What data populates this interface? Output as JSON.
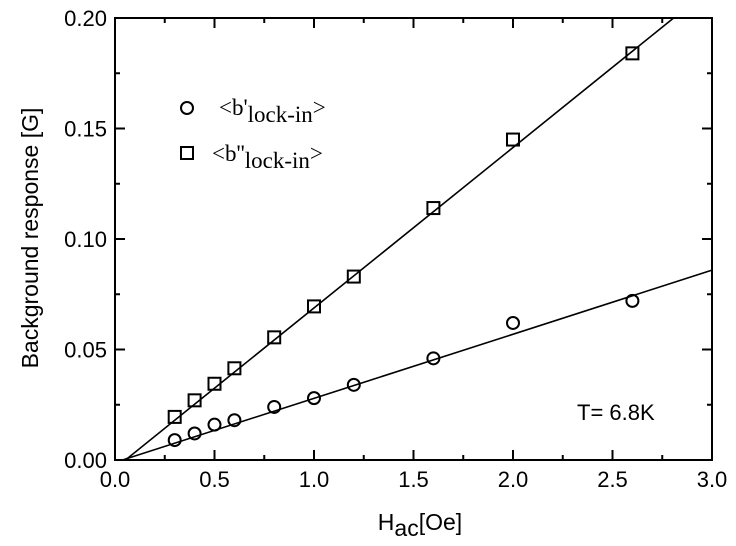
{
  "chart_data": {
    "type": "scatter",
    "xlabel_main": "H",
    "xlabel_sub": "ac",
    "xlabel_unit": "[Oe]",
    "ylabel": "Background response [G]",
    "xlim": [
      0.0,
      3.0
    ],
    "ylim": [
      0.0,
      0.2
    ],
    "x_ticks": [
      "0.0",
      "0.5",
      "1.0",
      "1.5",
      "2.0",
      "2.5",
      "3.0"
    ],
    "y_ticks": [
      "0.00",
      "0.05",
      "0.10",
      "0.15",
      "0.20"
    ],
    "legend_position": "top-left",
    "annotation": "T= 6.8K",
    "series": [
      {
        "name_main": "<b'",
        "name_sub": "lock-in",
        "name_end": ">",
        "marker": "circle",
        "x": [
          0.3,
          0.4,
          0.5,
          0.6,
          0.8,
          1.0,
          1.2,
          1.6,
          2.0,
          2.6
        ],
        "y": [
          0.009,
          0.012,
          0.016,
          0.018,
          0.024,
          0.028,
          0.034,
          0.046,
          0.062,
          0.072
        ],
        "fit": {
          "slope": 0.029,
          "intercept": -0.0011
        }
      },
      {
        "name_main": "<b''",
        "name_sub": "lock-in",
        "name_end": ">",
        "marker": "square",
        "x": [
          0.3,
          0.4,
          0.5,
          0.6,
          0.8,
          1.0,
          1.2,
          1.6,
          2.0,
          2.6
        ],
        "y": [
          0.0195,
          0.027,
          0.0345,
          0.0415,
          0.0555,
          0.0695,
          0.083,
          0.114,
          0.145,
          0.184
        ],
        "fit": {
          "slope": 0.0726,
          "intercept": -0.0038
        }
      }
    ]
  }
}
